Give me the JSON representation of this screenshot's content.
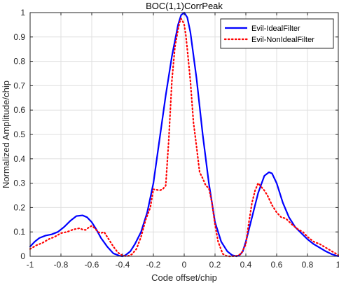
{
  "chart_data": {
    "type": "line",
    "title": "BOC(1,1)CorrPeak",
    "xlabel": "Code offset/chip",
    "ylabel": "Normalized Amplitude/chip",
    "xlim": [
      -1,
      1
    ],
    "ylim": [
      0,
      1
    ],
    "xticks": [
      -1,
      -0.8,
      -0.6,
      -0.4,
      -0.2,
      0,
      0.2,
      0.4,
      0.6,
      0.8,
      1
    ],
    "xtick_labels": [
      "-1",
      "-0.8",
      "-0.6",
      "-0.4",
      "-0.2",
      "0",
      "0.2",
      "0.4",
      "0.6",
      "0.8",
      "1"
    ],
    "yticks": [
      0,
      0.1,
      0.2,
      0.3,
      0.4,
      0.5,
      0.6,
      0.7,
      0.8,
      0.9,
      1
    ],
    "ytick_labels": [
      "0",
      "0.1",
      "0.2",
      "0.3",
      "0.4",
      "0.5",
      "0.6",
      "0.7",
      "0.8",
      "0.9",
      "1"
    ],
    "grid": true,
    "legend_position": "top-right",
    "series": [
      {
        "name": "Evil-IdealFilter",
        "color": "#0000ff",
        "style": "solid",
        "x": [
          -1,
          -0.97,
          -0.94,
          -0.9,
          -0.86,
          -0.82,
          -0.78,
          -0.74,
          -0.7,
          -0.66,
          -0.63,
          -0.6,
          -0.57,
          -0.54,
          -0.5,
          -0.46,
          -0.42,
          -0.4,
          -0.38,
          -0.35,
          -0.32,
          -0.28,
          -0.24,
          -0.2,
          -0.16,
          -0.12,
          -0.08,
          -0.04,
          -0.02,
          0,
          0.02,
          0.04,
          0.08,
          0.12,
          0.16,
          0.2,
          0.24,
          0.28,
          0.31,
          0.34,
          0.36,
          0.38,
          0.4,
          0.44,
          0.48,
          0.52,
          0.55,
          0.57,
          0.6,
          0.64,
          0.68,
          0.72,
          0.76,
          0.8,
          0.84,
          0.88,
          0.92,
          0.96,
          1
        ],
        "y": [
          0.04,
          0.06,
          0.075,
          0.085,
          0.09,
          0.1,
          0.12,
          0.145,
          0.165,
          0.168,
          0.16,
          0.14,
          0.11,
          0.075,
          0.04,
          0.012,
          0.002,
          0,
          0.005,
          0.02,
          0.05,
          0.1,
          0.18,
          0.3,
          0.48,
          0.66,
          0.82,
          0.95,
          0.99,
          1,
          0.98,
          0.92,
          0.73,
          0.5,
          0.3,
          0.14,
          0.06,
          0.02,
          0.005,
          0,
          0.005,
          0.02,
          0.06,
          0.16,
          0.26,
          0.33,
          0.345,
          0.34,
          0.3,
          0.22,
          0.16,
          0.12,
          0.095,
          0.07,
          0.05,
          0.035,
          0.02,
          0.008,
          0
        ]
      },
      {
        "name": "Evil-NonIdealFilter",
        "color": "#ff0000",
        "style": "dotted",
        "x": [
          -1,
          -0.96,
          -0.92,
          -0.88,
          -0.84,
          -0.8,
          -0.76,
          -0.72,
          -0.68,
          -0.66,
          -0.64,
          -0.62,
          -0.6,
          -0.58,
          -0.56,
          -0.54,
          -0.52,
          -0.49,
          -0.46,
          -0.43,
          -0.4,
          -0.37,
          -0.34,
          -0.31,
          -0.28,
          -0.25,
          -0.22,
          -0.2,
          -0.18,
          -0.16,
          -0.14,
          -0.12,
          -0.1,
          -0.08,
          -0.06,
          -0.04,
          -0.03,
          -0.02,
          -0.01,
          0,
          0.01,
          0.02,
          0.04,
          0.06,
          0.08,
          0.1,
          0.12,
          0.14,
          0.16,
          0.18,
          0.2,
          0.22,
          0.25,
          0.28,
          0.31,
          0.34,
          0.37,
          0.4,
          0.42,
          0.44,
          0.46,
          0.48,
          0.5,
          0.52,
          0.54,
          0.57,
          0.6,
          0.63,
          0.66,
          0.7,
          0.74,
          0.77,
          0.8,
          0.84,
          0.88,
          0.92,
          0.96,
          1
        ],
        "y": [
          0.03,
          0.045,
          0.055,
          0.07,
          0.08,
          0.095,
          0.1,
          0.11,
          0.115,
          0.11,
          0.108,
          0.118,
          0.125,
          0.115,
          0.1,
          0.095,
          0.1,
          0.07,
          0.04,
          0.015,
          0.003,
          0,
          0.008,
          0.03,
          0.08,
          0.15,
          0.2,
          0.275,
          0.273,
          0.27,
          0.275,
          0.29,
          0.48,
          0.72,
          0.86,
          0.93,
          0.96,
          0.975,
          0.965,
          0.95,
          0.91,
          0.85,
          0.72,
          0.55,
          0.45,
          0.345,
          0.32,
          0.29,
          0.28,
          0.22,
          0.13,
          0.06,
          0.01,
          0,
          0,
          0.002,
          0.01,
          0.05,
          0.14,
          0.22,
          0.27,
          0.3,
          0.285,
          0.27,
          0.25,
          0.21,
          0.18,
          0.16,
          0.155,
          0.13,
          0.11,
          0.1,
          0.08,
          0.06,
          0.05,
          0.035,
          0.02,
          0.005
        ]
      }
    ]
  }
}
